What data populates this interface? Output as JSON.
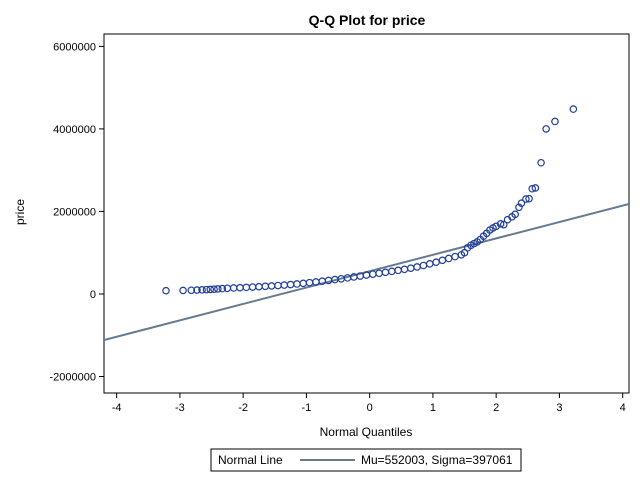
{
  "chart_data": {
    "type": "scatter",
    "title": "Q-Q Plot for price",
    "xlabel": "Normal Quantiles",
    "ylabel": "price",
    "xlim": [
      -4.2,
      4.1
    ],
    "ylim": [
      -2400000,
      6300000
    ],
    "x_ticks": [
      -4,
      -3,
      -2,
      -1,
      0,
      1,
      2,
      3,
      4
    ],
    "x_tick_labels": [
      "-4",
      "-3",
      "-2",
      "-1",
      "0",
      "1",
      "2",
      "3",
      "4"
    ],
    "y_ticks": [
      -2000000,
      0,
      2000000,
      4000000,
      6000000
    ],
    "y_tick_labels": [
      "-2000000",
      "0",
      "2000000",
      "4000000",
      "6000000"
    ],
    "grid": false,
    "series": [
      {
        "kind": "points",
        "marker": "open-circle",
        "color": "#1f3d99",
        "points": [
          [
            -3.22,
            80000
          ],
          [
            -2.95,
            85000
          ],
          [
            -2.82,
            90000
          ],
          [
            -2.73,
            95000
          ],
          [
            -2.65,
            100000
          ],
          [
            -2.58,
            105000
          ],
          [
            -2.52,
            110000
          ],
          [
            -2.46,
            115000
          ],
          [
            -2.4,
            122000
          ],
          [
            -2.33,
            130000
          ],
          [
            -2.25,
            138000
          ],
          [
            -2.15,
            145000
          ],
          [
            -2.05,
            152000
          ],
          [
            -1.95,
            160000
          ],
          [
            -1.85,
            168000
          ],
          [
            -1.75,
            176000
          ],
          [
            -1.65,
            185000
          ],
          [
            -1.55,
            195000
          ],
          [
            -1.45,
            205000
          ],
          [
            -1.35,
            215000
          ],
          [
            -1.25,
            228000
          ],
          [
            -1.15,
            242000
          ],
          [
            -1.05,
            258000
          ],
          [
            -0.95,
            275000
          ],
          [
            -0.85,
            292000
          ],
          [
            -0.75,
            310000
          ],
          [
            -0.65,
            328000
          ],
          [
            -0.55,
            348000
          ],
          [
            -0.45,
            368000
          ],
          [
            -0.35,
            390000
          ],
          [
            -0.25,
            412000
          ],
          [
            -0.15,
            435000
          ],
          [
            -0.05,
            458000
          ],
          [
            0.05,
            480000
          ],
          [
            0.15,
            502000
          ],
          [
            0.25,
            525000
          ],
          [
            0.35,
            548000
          ],
          [
            0.45,
            572000
          ],
          [
            0.55,
            598000
          ],
          [
            0.65,
            625000
          ],
          [
            0.75,
            655000
          ],
          [
            0.85,
            690000
          ],
          [
            0.95,
            730000
          ],
          [
            1.05,
            770000
          ],
          [
            1.15,
            815000
          ],
          [
            1.25,
            860000
          ],
          [
            1.35,
            905000
          ],
          [
            1.45,
            950000
          ],
          [
            1.5,
            1000000
          ],
          [
            1.55,
            1120000
          ],
          [
            1.6,
            1180000
          ],
          [
            1.65,
            1220000
          ],
          [
            1.7,
            1260000
          ],
          [
            1.75,
            1320000
          ],
          [
            1.8,
            1400000
          ],
          [
            1.85,
            1470000
          ],
          [
            1.9,
            1550000
          ],
          [
            1.95,
            1600000
          ],
          [
            2.0,
            1640000
          ],
          [
            2.07,
            1700000
          ],
          [
            2.12,
            1680000
          ],
          [
            2.18,
            1800000
          ],
          [
            2.25,
            1870000
          ],
          [
            2.3,
            1930000
          ],
          [
            2.36,
            2100000
          ],
          [
            2.4,
            2200000
          ],
          [
            2.47,
            2300000
          ],
          [
            2.52,
            2310000
          ],
          [
            2.57,
            2550000
          ],
          [
            2.62,
            2570000
          ],
          [
            2.71,
            3180000
          ],
          [
            2.79,
            4000000
          ],
          [
            2.93,
            4180000
          ],
          [
            3.22,
            4480000
          ]
        ]
      },
      {
        "kind": "reference-line",
        "name": "Normal Line",
        "color": "#667a8f",
        "mu": 552003,
        "sigma": 397061
      }
    ],
    "legend": {
      "position": "bottom-center",
      "label": "Normal Line",
      "text": "Mu=552003, Sigma=397061"
    }
  }
}
